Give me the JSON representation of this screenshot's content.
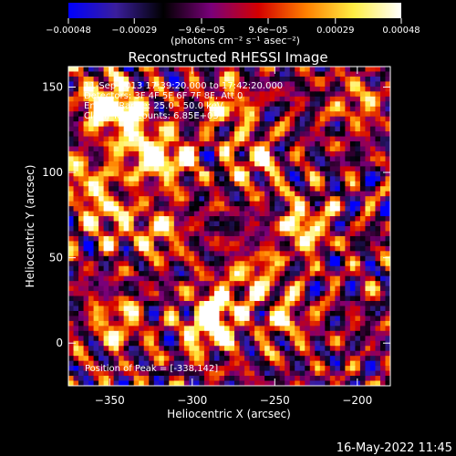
{
  "chart_data": {
    "type": "heatmap",
    "title": "Reconstructed RHESSI Image",
    "xlabel": "Heliocentric X (arcsec)",
    "ylabel": "Heliocentric Y (arcsec)",
    "xlim": [
      -375,
      -180
    ],
    "ylim": [
      -25,
      162
    ],
    "xticks": [
      -350,
      -300,
      -250,
      -200
    ],
    "xtick_labels": [
      "−350",
      "−300",
      "−250",
      "−200"
    ],
    "yticks": [
      0,
      50,
      100,
      150
    ],
    "ytick_labels": [
      "0",
      "50",
      "100",
      "150"
    ],
    "colorbar": {
      "range": [
        -0.00048,
        0.00048
      ],
      "ticks": [
        -0.00048,
        -0.00029,
        -9.6e-05,
        9.6e-05,
        0.00029,
        0.00048
      ],
      "tick_labels": [
        "−0.00048",
        "−0.00029",
        "−9.6e−05",
        "9.6e−05",
        "0.00029",
        "0.00048"
      ],
      "units": "(photons cm⁻² s⁻¹ asec⁻²)",
      "colormap": [
        "#0000ff",
        "#3a1e9c",
        "#000000",
        "#7a007a",
        "#d40000",
        "#ff8000",
        "#ffee44",
        "#ffffff"
      ]
    },
    "annotations": [
      "11-Sep-2013 17:39:20.000 to 17:42:20.000",
      "Detectors: 3F 4F 5F 6F 7F 8F, Att 0",
      "Energy Range: 25.0 - 50.0 keV",
      "Clean     Total counts: 6.85E+03"
    ],
    "peak_label": "Position of Peak = [-338,142]",
    "peak": [
      -338,
      142
    ],
    "bright_regions": [
      {
        "x": -355,
        "y": 140,
        "level": 1.0
      },
      {
        "x": -340,
        "y": 135,
        "level": 0.95
      },
      {
        "x": -330,
        "y": 110,
        "level": 0.9
      },
      {
        "x": -312,
        "y": 108,
        "level": 0.85
      },
      {
        "x": -350,
        "y": 75,
        "level": 0.7
      },
      {
        "x": -365,
        "y": 95,
        "level": 0.7
      },
      {
        "x": -262,
        "y": 108,
        "level": 0.75
      },
      {
        "x": -278,
        "y": 140,
        "level": 0.7
      },
      {
        "x": -232,
        "y": 68,
        "level": 0.95
      },
      {
        "x": -262,
        "y": 40,
        "level": 0.7
      },
      {
        "x": -285,
        "y": 20,
        "level": 0.95
      },
      {
        "x": -290,
        "y": 8,
        "level": 0.9
      },
      {
        "x": -345,
        "y": 12,
        "level": 0.75
      },
      {
        "x": -320,
        "y": 65,
        "level": 0.7
      },
      {
        "x": -243,
        "y": 15,
        "level": 0.65
      },
      {
        "x": -200,
        "y": 140,
        "level": 0.55
      }
    ]
  },
  "footer": {
    "timestamp": "16-May-2022 11:45"
  }
}
